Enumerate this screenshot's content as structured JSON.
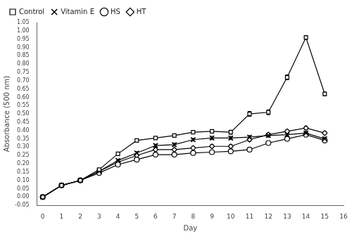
{
  "chart_data": {
    "type": "line",
    "xlabel": "Day",
    "ylabel": "Absorbance (500 nm)",
    "x": [
      0,
      1,
      2,
      3,
      4,
      5,
      6,
      7,
      8,
      9,
      10,
      11,
      12,
      13,
      14,
      15
    ],
    "series": [
      {
        "name": "Control",
        "color": "#000000",
        "marker": "square",
        "values": [
          0.0,
          0.07,
          0.1,
          0.165,
          0.26,
          0.34,
          0.355,
          0.37,
          0.39,
          0.395,
          0.39,
          0.5,
          0.51,
          0.72,
          0.96,
          0.62
        ],
        "errors": [
          0.002,
          0.005,
          0.006,
          0.006,
          0.008,
          0.008,
          0.008,
          0.008,
          0.01,
          0.01,
          0.012,
          0.015,
          0.015,
          0.015,
          0.012,
          0.012
        ]
      },
      {
        "name": "Vitamin E",
        "color": "#000000",
        "marker": "x",
        "values": [
          0.0,
          0.07,
          0.1,
          0.155,
          0.22,
          0.265,
          0.31,
          0.315,
          0.345,
          0.355,
          0.355,
          0.36,
          0.37,
          0.375,
          0.385,
          0.35
        ],
        "errors": [
          0.002,
          0.005,
          0.006,
          0.006,
          0.008,
          0.008,
          0.008,
          0.008,
          0.008,
          0.01,
          0.01,
          0.01,
          0.01,
          0.01,
          0.01,
          0.01
        ]
      },
      {
        "name": "HS",
        "color": "#000000",
        "marker": "circle",
        "values": [
          0.0,
          0.07,
          0.1,
          0.145,
          0.195,
          0.225,
          0.255,
          0.255,
          0.265,
          0.27,
          0.275,
          0.285,
          0.325,
          0.35,
          0.375,
          0.34
        ],
        "errors": [
          0.002,
          0.005,
          0.006,
          0.005,
          0.006,
          0.006,
          0.006,
          0.007,
          0.007,
          0.008,
          0.008,
          0.009,
          0.009,
          0.009,
          0.009,
          0.009
        ]
      },
      {
        "name": "HT",
        "color": "#000000",
        "marker": "diamond",
        "values": [
          0.0,
          0.07,
          0.1,
          0.155,
          0.21,
          0.25,
          0.285,
          0.285,
          0.295,
          0.305,
          0.305,
          0.345,
          0.375,
          0.395,
          0.415,
          0.385
        ],
        "errors": [
          0.002,
          0.005,
          0.006,
          0.006,
          0.008,
          0.008,
          0.008,
          0.008,
          0.008,
          0.01,
          0.01,
          0.01,
          0.01,
          0.01,
          0.01,
          0.01
        ]
      }
    ],
    "xlim": [
      -0.3,
      16
    ],
    "xticks": [
      0,
      1,
      2,
      3,
      4,
      5,
      6,
      7,
      8,
      9,
      10,
      11,
      12,
      13,
      14,
      15,
      16
    ],
    "ylim": [
      -0.05,
      1.05
    ],
    "yticks": [
      -0.05,
      {
        "value": 0,
        "label": "0.00"
      },
      0.05,
      {
        "value": 0.1,
        "label": "0.10"
      },
      0.15,
      {
        "value": 0.2,
        "label": "0.20"
      },
      0.25,
      {
        "value": 0.3,
        "label": "0.30"
      },
      0.35,
      {
        "value": 0.4,
        "label": "0.40"
      },
      0.45,
      {
        "value": 0.5,
        "label": "0.50"
      },
      0.55,
      {
        "value": 0.6,
        "label": "0.60"
      },
      0.65,
      {
        "value": 0.7,
        "label": "0.70"
      },
      0.75,
      {
        "value": 0.8,
        "label": "0.80"
      },
      0.85,
      {
        "value": 0.9,
        "label": "0.90"
      },
      0.95,
      {
        "value": 1,
        "label": "1.00"
      },
      1.05
    ],
    "grid": false,
    "legend": "upper left"
  }
}
